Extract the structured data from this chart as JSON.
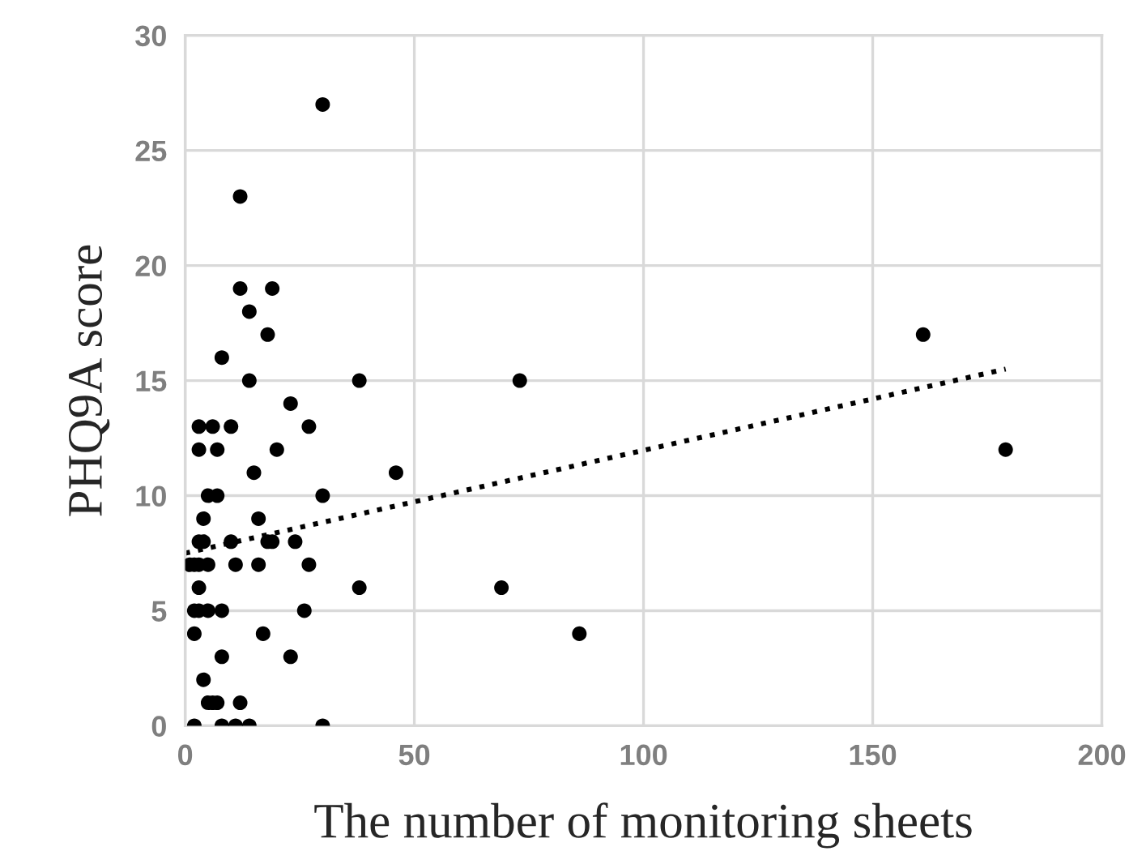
{
  "chart_data": {
    "type": "scatter",
    "xlabel": "The number of monitoring sheets",
    "ylabel": "PHQ9A score",
    "xlim": [
      0,
      200
    ],
    "xticks": [
      0,
      50,
      100,
      150,
      200
    ],
    "ylim": [
      0,
      30
    ],
    "yticks": [
      0,
      5,
      10,
      15,
      20,
      25,
      30
    ],
    "grid": true,
    "legend": false,
    "marker": "circle",
    "series": [
      {
        "color": "#000000",
        "x": [
          30,
          12,
          12,
          19,
          14,
          18,
          8,
          14,
          38,
          23,
          3,
          6,
          10,
          27,
          3,
          7,
          20,
          15,
          46,
          5,
          7,
          30,
          4,
          16,
          3,
          4,
          10,
          18,
          19,
          24,
          1,
          2,
          3,
          5,
          11,
          16,
          27,
          3,
          38,
          2,
          3,
          5,
          8,
          26,
          2,
          17,
          8,
          23,
          4,
          5,
          6,
          7,
          12,
          2,
          8,
          11,
          14,
          30,
          69,
          73,
          86,
          161,
          179
        ],
        "values": [
          27,
          23,
          19,
          19,
          18,
          17,
          16,
          15,
          15,
          14,
          13,
          13,
          13,
          13,
          12,
          12,
          12,
          11,
          11,
          10,
          10,
          10,
          9,
          9,
          8,
          8,
          8,
          8,
          8,
          8,
          7,
          7,
          7,
          7,
          7,
          7,
          7,
          6,
          6,
          5,
          5,
          5,
          5,
          5,
          4,
          4,
          3,
          3,
          2,
          1,
          1,
          1,
          1,
          0,
          0,
          0,
          0,
          0,
          6,
          15,
          4,
          17,
          12
        ]
      },
      {
        "type": "line",
        "color": "#000000",
        "marker": "none",
        "line_style": "dotted",
        "x": [
          0,
          179
        ],
        "values": [
          7.5,
          15.5
        ]
      }
    ]
  }
}
